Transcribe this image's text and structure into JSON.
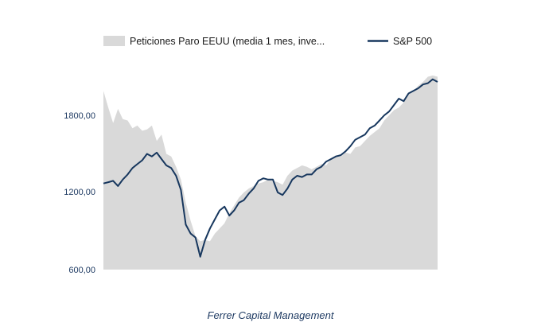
{
  "chart_data": {
    "type": "area",
    "title": "",
    "xlabel": "",
    "ylabel": "",
    "ylim": [
      600,
      1800
    ],
    "y_ticks": [
      "600,00",
      "1200,00",
      "1800,00"
    ],
    "x_ticks": [],
    "grid": false,
    "legend_position": "top",
    "credit": "Ferrer Capital Management",
    "series": [
      {
        "name": "Peticiones Paro EEUU (media 1 mes, inve...",
        "kind": "area",
        "color": "#d9d9d9",
        "values": [
          1990,
          1860,
          1740,
          1850,
          1770,
          1760,
          1700,
          1720,
          1680,
          1690,
          1720,
          1600,
          1650,
          1500,
          1480,
          1400,
          1300,
          1120,
          980,
          860,
          820,
          830,
          820,
          880,
          920,
          960,
          1040,
          1100,
          1160,
          1200,
          1230,
          1250,
          1270,
          1280,
          1300,
          1290,
          1280,
          1260,
          1330,
          1370,
          1390,
          1410,
          1400,
          1380,
          1400,
          1420,
          1410,
          1460,
          1490,
          1480,
          1510,
          1500,
          1550,
          1560,
          1600,
          1640,
          1670,
          1700,
          1760,
          1800,
          1840,
          1860,
          1900,
          1960,
          1990,
          2030,
          2060,
          2100,
          2110,
          2100
        ]
      },
      {
        "name": "S&P 500",
        "kind": "line",
        "color": "#17375e",
        "values": [
          1270,
          1280,
          1290,
          1250,
          1300,
          1340,
          1390,
          1420,
          1450,
          1500,
          1480,
          1510,
          1460,
          1410,
          1390,
          1330,
          1220,
          950,
          880,
          850,
          700,
          830,
          920,
          990,
          1060,
          1090,
          1020,
          1060,
          1120,
          1140,
          1190,
          1230,
          1290,
          1310,
          1300,
          1300,
          1200,
          1180,
          1230,
          1300,
          1330,
          1320,
          1340,
          1340,
          1380,
          1400,
          1440,
          1460,
          1480,
          1490,
          1520,
          1560,
          1610,
          1630,
          1650,
          1700,
          1720,
          1760,
          1800,
          1830,
          1880,
          1930,
          1910,
          1970,
          1990,
          2010,
          2040,
          2050,
          2080,
          2060
        ]
      }
    ]
  }
}
